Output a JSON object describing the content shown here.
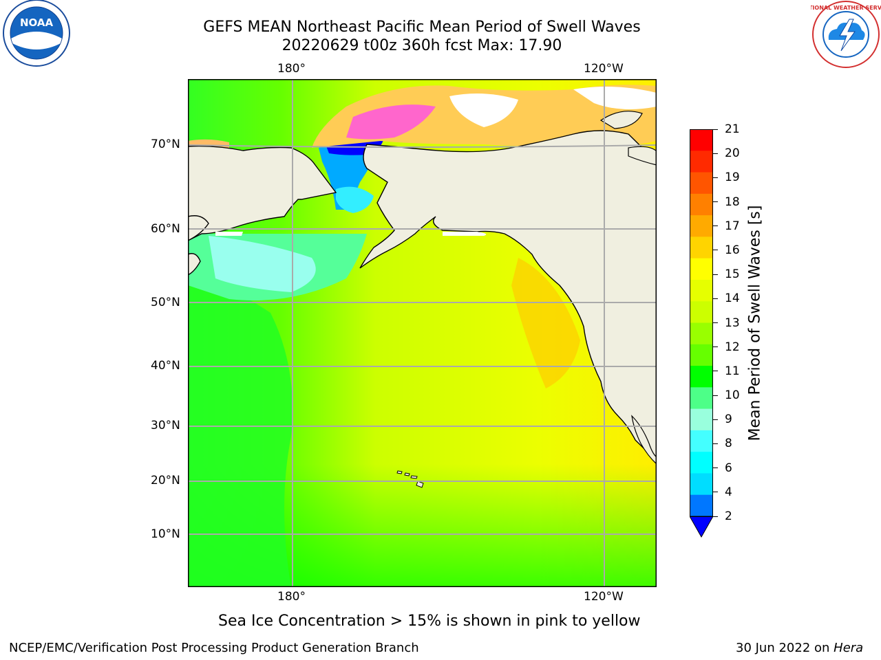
{
  "header": {
    "title_line1": "GEFS MEAN Northeast Pacific Mean Period of Swell Waves",
    "title_line2": "20220629 t00z 360h fcst   Max: 17.90"
  },
  "logos": {
    "noaa_text": "NOAA",
    "nws_text": "NATIONAL WEATHER SERVICE"
  },
  "map": {
    "lon_labels_top": [
      "180°",
      "120°W"
    ],
    "lon_labels_bottom": [
      "180°",
      "120°W"
    ],
    "lat_labels": [
      "70°N",
      "60°N",
      "50°N",
      "40°N",
      "30°N",
      "20°N",
      "10°N"
    ]
  },
  "colorbar": {
    "title": "Mean Period of Swell Waves [s]",
    "ticks": [
      "21",
      "20",
      "19",
      "18",
      "17",
      "16",
      "15",
      "14",
      "13",
      "12",
      "11",
      "10",
      "9",
      "8",
      "6",
      "4",
      "2"
    ],
    "colors": [
      "#ff0000",
      "#ff2a00",
      "#ff5500",
      "#ff8000",
      "#ffaa00",
      "#ffd400",
      "#ffff00",
      "#e6ff00",
      "#ccff00",
      "#99ff00",
      "#66ff00",
      "#00ff00",
      "#4dff88",
      "#99ffdd",
      "#44ffff",
      "#00ffff",
      "#00ddff",
      "#0077ff"
    ],
    "extend_color": "#0000ff"
  },
  "note": "Sea Ice Concentration > 15% is shown in pink to yellow",
  "footer": {
    "left": "NCEP/EMC/Verification Post Processing Product Generation Branch",
    "date": "30 Jun 2022 on ",
    "machine": "Hera"
  }
}
